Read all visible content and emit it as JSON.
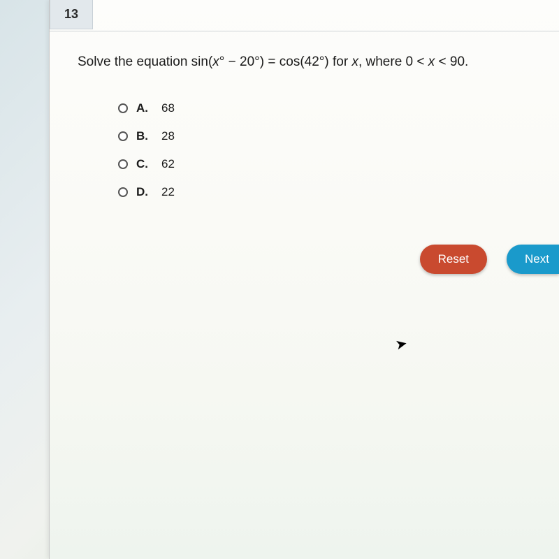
{
  "question_number": "13",
  "question_html": "Solve the equation sin(<span class='var'>x</span>° − 20°) = cos(42°) for <span class='var'>x</span>, where 0 < <span class='var'>x</span> < 90.",
  "choices": [
    {
      "letter": "A.",
      "value": "68"
    },
    {
      "letter": "B.",
      "value": "28"
    },
    {
      "letter": "C.",
      "value": "62"
    },
    {
      "letter": "D.",
      "value": "22"
    }
  ],
  "buttons": {
    "reset": "Reset",
    "next": "Next"
  },
  "colors": {
    "reset_bg": "#c94a2f",
    "next_bg": "#1a9acb",
    "text": "#1a1a1a",
    "tab_bg": "#e2e8ec"
  }
}
